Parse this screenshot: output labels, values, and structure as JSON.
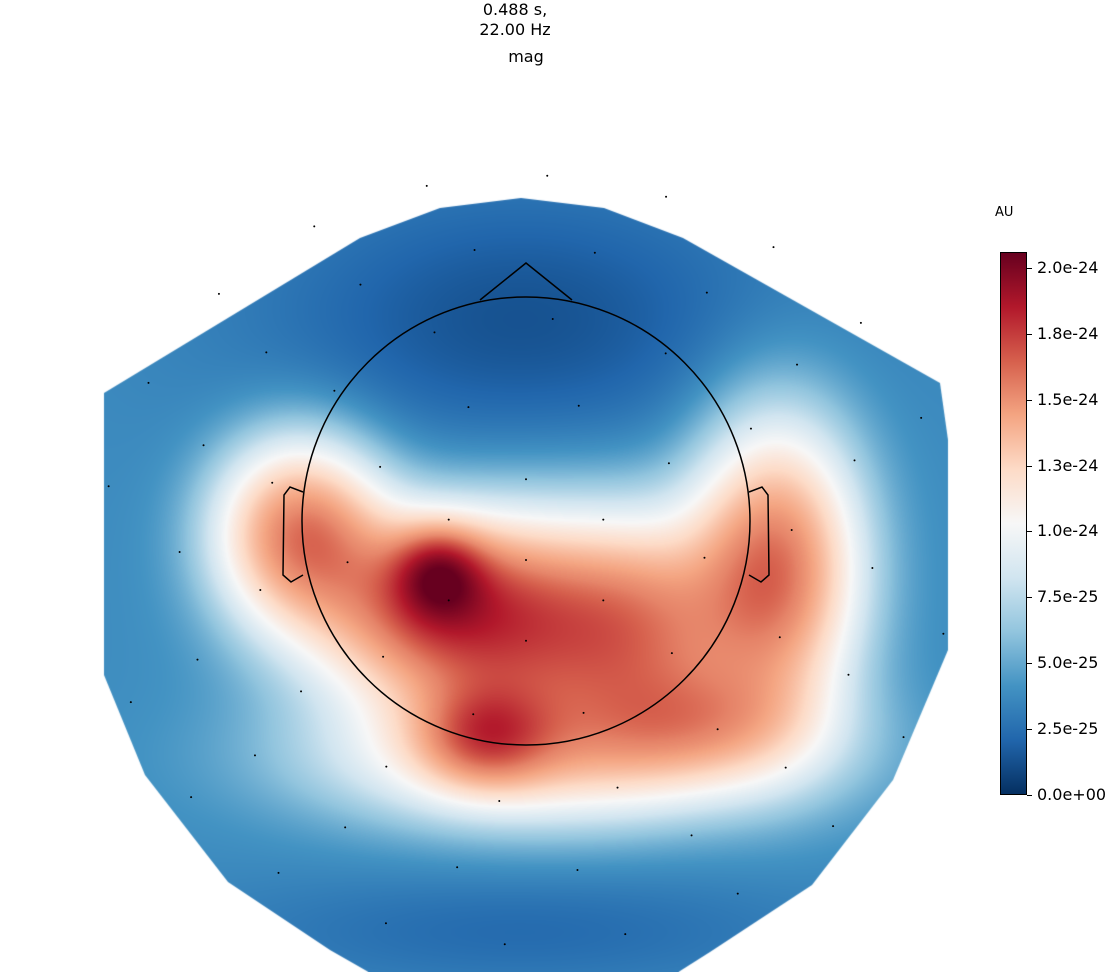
{
  "title": {
    "line1": "0.488 s,",
    "line2": "22.00 Hz",
    "channel_type": "mag"
  },
  "chart_data": {
    "type": "heatmap",
    "subtype": "topomap",
    "title": "0.488 s,\n22.00 Hz",
    "subtitle": "mag",
    "colormap": "RdBu_r",
    "colorbar": {
      "label": "AU",
      "vmin": 0.0,
      "vmax": 2.06e-24,
      "ticks": [
        {
          "value": 0.0,
          "label": "0.0e+00"
        },
        {
          "value": 2.5e-25,
          "label": "2.5e-25"
        },
        {
          "value": 5e-25,
          "label": "5.0e-25"
        },
        {
          "value": 7.5e-25,
          "label": "7.5e-25"
        },
        {
          "value": 1e-24,
          "label": "1.0e-24"
        },
        {
          "value": 1.25e-24,
          "label": "1.3e-24"
        },
        {
          "value": 1.5e-24,
          "label": "1.5e-24"
        },
        {
          "value": 1.75e-24,
          "label": "1.8e-24"
        },
        {
          "value": 2e-24,
          "label": "2.0e-24"
        }
      ]
    },
    "regions": [
      {
        "region": "left-central peak",
        "value": 2e-24
      },
      {
        "region": "left temporal",
        "value": 1.65e-24
      },
      {
        "region": "right temporal",
        "value": 1.65e-24
      },
      {
        "region": "occipital-left",
        "value": 1.6e-24
      },
      {
        "region": "central band",
        "value": 1.35e-24
      },
      {
        "region": "frontal",
        "value": 1.5e-25
      },
      {
        "region": "periphery",
        "value": 4e-25
      }
    ]
  }
}
